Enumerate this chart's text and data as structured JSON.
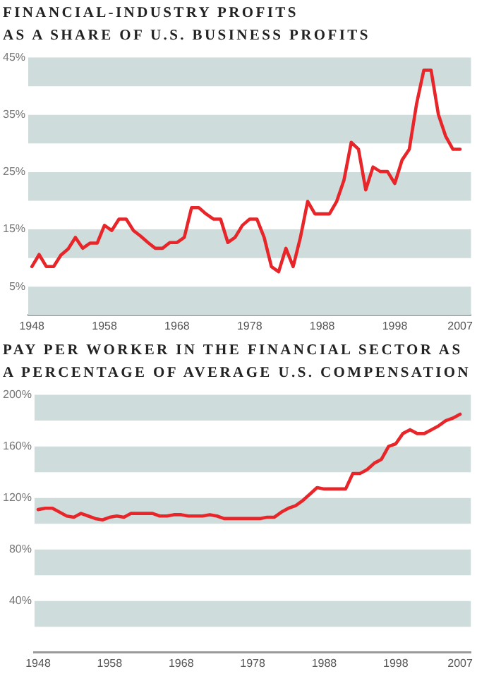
{
  "chart_data": [
    {
      "type": "line",
      "title": "FINANCIAL-INDUSTRY PROFITS\nAS A SHARE OF U.S. BUSINESS PROFITS",
      "x": [
        1948,
        1949,
        1950,
        1951,
        1952,
        1953,
        1954,
        1955,
        1956,
        1957,
        1958,
        1959,
        1960,
        1961,
        1962,
        1963,
        1964,
        1965,
        1966,
        1967,
        1968,
        1969,
        1970,
        1971,
        1972,
        1973,
        1974,
        1975,
        1976,
        1977,
        1978,
        1979,
        1980,
        1981,
        1982,
        1983,
        1984,
        1985,
        1986,
        1987,
        1988,
        1989,
        1990,
        1991,
        1992,
        1993,
        1994,
        1995,
        1996,
        1997,
        1998,
        1999,
        2000,
        2001,
        2002,
        2003,
        2004,
        2005,
        2006,
        2007
      ],
      "series": [
        {
          "color": "#e8262a",
          "values": [
            8.5,
            10.6,
            8.5,
            8.5,
            10.5,
            11.6,
            13.6,
            11.7,
            12.6,
            12.6,
            15.7,
            14.8,
            16.8,
            16.8,
            14.8,
            13.8,
            12.7,
            11.7,
            11.7,
            12.7,
            12.7,
            13.6,
            18.8,
            18.8,
            17.7,
            16.8,
            16.8,
            12.7,
            13.6,
            15.7,
            16.8,
            16.8,
            13.6,
            8.5,
            7.6,
            11.7,
            8.5,
            13.6,
            19.9,
            17.7,
            17.7,
            17.7,
            19.9,
            23.6,
            30.2,
            29.0,
            21.9,
            25.9,
            25.1,
            25.1,
            23.0,
            27.1,
            29.0,
            36.9,
            42.8,
            42.8,
            35.1,
            31.3,
            29.0,
            29.0
          ]
        }
      ],
      "xlim": [
        1947.5,
        2008.5
      ],
      "xticks": [
        1948,
        1958,
        1968,
        1978,
        1988,
        1998,
        2007
      ],
      "ylim": [
        0,
        45
      ],
      "yticks": [
        {
          "value": 5,
          "label": "5%"
        },
        {
          "value": 15,
          "label": "15%"
        },
        {
          "value": 25,
          "label": "25%"
        },
        {
          "value": 35,
          "label": "35%"
        },
        {
          "value": 45,
          "label": "45%"
        }
      ],
      "bands": [
        {
          "axis": "y",
          "from": 0,
          "to": 5,
          "color": "#cfdcdc"
        },
        {
          "axis": "y",
          "from": 10,
          "to": 15,
          "color": "#cfdcdc"
        },
        {
          "axis": "y",
          "from": 20,
          "to": 25,
          "color": "#cfdcdc"
        },
        {
          "axis": "y",
          "from": 30,
          "to": 35,
          "color": "#cfdcdc"
        },
        {
          "axis": "y",
          "from": 40,
          "to": 45,
          "color": "#cfdcdc"
        }
      ],
      "grid": false,
      "legend": false,
      "marker": "none",
      "line_style": "solid"
    },
    {
      "type": "line",
      "title": "PAY PER WORKER IN THE FINANCIAL SECTOR AS\nA PERCENTAGE OF AVERAGE U.S. COMPENSATION",
      "x": [
        1948,
        1949,
        1950,
        1951,
        1952,
        1953,
        1954,
        1955,
        1956,
        1957,
        1958,
        1959,
        1960,
        1961,
        1962,
        1963,
        1964,
        1965,
        1966,
        1967,
        1968,
        1969,
        1970,
        1971,
        1972,
        1973,
        1974,
        1975,
        1976,
        1977,
        1978,
        1979,
        1980,
        1981,
        1982,
        1983,
        1984,
        1985,
        1986,
        1987,
        1988,
        1989,
        1990,
        1991,
        1992,
        1993,
        1994,
        1995,
        1996,
        1997,
        1998,
        1999,
        2000,
        2001,
        2002,
        2003,
        2004,
        2005,
        2006,
        2007
      ],
      "series": [
        {
          "color": "#e8262a",
          "values": [
            111,
            112,
            112,
            109,
            106,
            105,
            108,
            106,
            104,
            103,
            105,
            106,
            105,
            108,
            108,
            108,
            108,
            106,
            106,
            107,
            107,
            106,
            106,
            106,
            107,
            106,
            104,
            104,
            104,
            104,
            104,
            104,
            105,
            105,
            109,
            112,
            114,
            118,
            123,
            128,
            127,
            127,
            127,
            127,
            139,
            139,
            142,
            147,
            150,
            160,
            162,
            170,
            173,
            170,
            170,
            173,
            176,
            180,
            182,
            185
          ]
        }
      ],
      "xlim": [
        1947.5,
        2008.5
      ],
      "xticks": [
        1948,
        1958,
        1968,
        1978,
        1988,
        1998,
        2007
      ],
      "ylim": [
        0,
        200
      ],
      "yticks": [
        {
          "value": 40,
          "label": "40%"
        },
        {
          "value": 80,
          "label": "80%"
        },
        {
          "value": 120,
          "label": "120%"
        },
        {
          "value": 160,
          "label": "160%"
        },
        {
          "value": 200,
          "label": "200%"
        }
      ],
      "bands": [
        {
          "axis": "y",
          "from": 20,
          "to": 40,
          "color": "#cfdcdc"
        },
        {
          "axis": "y",
          "from": 60,
          "to": 80,
          "color": "#cfdcdc"
        },
        {
          "axis": "y",
          "from": 100,
          "to": 120,
          "color": "#cfdcdc"
        },
        {
          "axis": "y",
          "from": 140,
          "to": 160,
          "color": "#cfdcdc"
        },
        {
          "axis": "y",
          "from": 180,
          "to": 200,
          "color": "#cfdcdc"
        }
      ],
      "grid": false,
      "legend": false,
      "marker": "none",
      "line_style": "solid"
    }
  ]
}
